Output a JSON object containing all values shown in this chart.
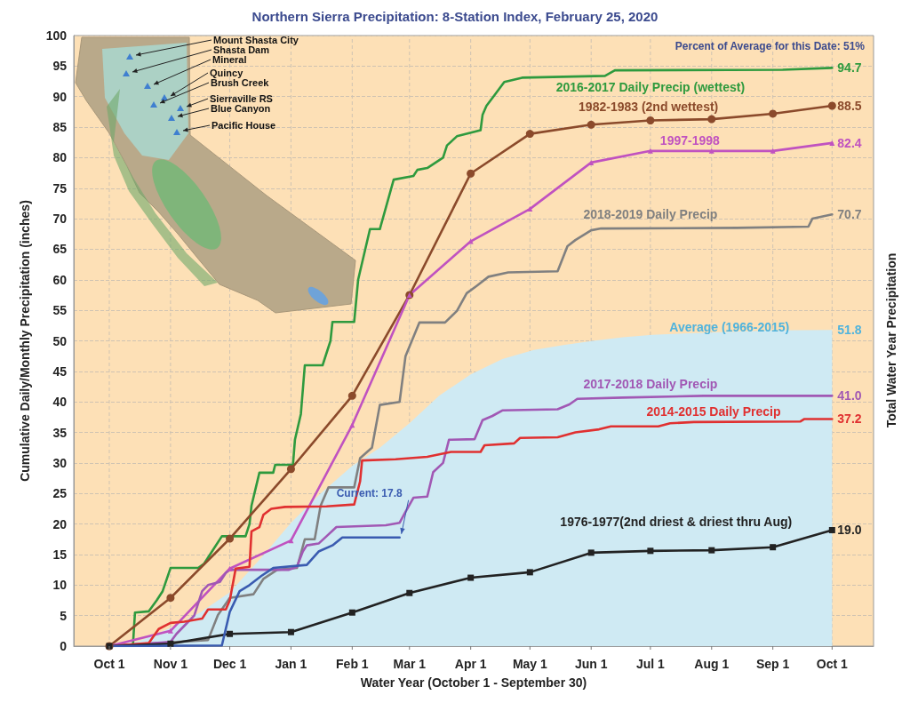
{
  "chart_data": {
    "type": "line",
    "title": "Northern Sierra Precipitation: 8-Station Index, February 25, 2020",
    "xlabel": "Water Year (October 1 - September 30)",
    "ylabel": "Cumulative Daily/Monthly Precipitation (inches)",
    "y2label": "Total Water Year Precipitation",
    "annotations": [
      "Percent of Average for this Date: 51%",
      "Mount Shasta City",
      "Shasta Dam",
      "Mineral",
      "Quincy",
      "Brush Creek",
      "Sierraville RS",
      "Blue Canyon",
      "Pacific House"
    ],
    "xlim": [
      "2019-09-13",
      "2020-10-22"
    ],
    "xticks": [
      {
        "value": "2019-10-01",
        "label": "Oct 1"
      },
      {
        "value": "2019-11-01",
        "label": "Nov 1"
      },
      {
        "value": "2019-12-01",
        "label": "Dec 1"
      },
      {
        "value": "2020-01-01",
        "label": "Jan 1"
      },
      {
        "value": "2020-02-01",
        "label": "Feb 1"
      },
      {
        "value": "2020-03-01",
        "label": "Mar 1"
      },
      {
        "value": "2020-04-01",
        "label": "Apr 1"
      },
      {
        "value": "2020-05-01",
        "label": "May 1"
      },
      {
        "value": "2020-06-01",
        "label": "Jun 1"
      },
      {
        "value": "2020-07-01",
        "label": "Jul 1"
      },
      {
        "value": "2020-08-01",
        "label": "Aug 1"
      },
      {
        "value": "2020-09-01",
        "label": "Sep 1"
      },
      {
        "value": "2020-10-01",
        "label": "Oct 1"
      }
    ],
    "ylim": [
      0,
      100
    ],
    "yticks": [
      0,
      5,
      10,
      15,
      20,
      25,
      30,
      35,
      40,
      45,
      50,
      55,
      60,
      65,
      70,
      75,
      80,
      85,
      90,
      95,
      100
    ],
    "grid": true,
    "marker": "none",
    "series": [
      {
        "name": "Average (1966-2015)",
        "type": "area",
        "color": "#cfeaf3",
        "x": [
          "2019-10-01",
          "2019-10-16",
          "2019-11-01",
          "2019-11-16",
          "2019-12-01",
          "2019-12-17",
          "2020-01-01",
          "2020-01-16",
          "2020-02-01",
          "2020-02-15",
          "2020-03-01",
          "2020-03-16",
          "2020-04-01",
          "2020-04-17",
          "2020-05-03",
          "2020-05-18",
          "2020-06-02",
          "2020-06-17",
          "2020-07-02",
          "2020-08-02",
          "2020-09-01",
          "2020-10-01"
        ],
        "values": [
          0,
          0.8,
          3,
          5.5,
          8.8,
          14.5,
          20.2,
          25,
          29.5,
          32.5,
          36.5,
          41,
          44.5,
          47,
          48.5,
          49.3,
          50,
          50.6,
          51,
          51.4,
          51.7,
          51.8
        ],
        "value_labels": [
          null,
          null,
          null,
          null,
          null,
          null,
          null,
          null,
          null,
          null,
          null,
          null,
          null,
          null,
          null,
          null,
          null,
          null,
          null,
          null,
          null,
          "51.8"
        ]
      },
      {
        "name": "2016-2017 Daily Precip (wettest)",
        "color": "#2e9a3e",
        "x": [
          "2019-10-01",
          "2019-10-13",
          "2019-10-14",
          "2019-10-21",
          "2019-10-25",
          "2019-10-28",
          "2019-11-01",
          "2019-11-15",
          "2019-11-18",
          "2019-11-22",
          "2019-11-27",
          "2019-12-09",
          "2019-12-11",
          "2019-12-12",
          "2019-12-16",
          "2019-12-23",
          "2019-12-24",
          "2020-01-02",
          "2020-01-03",
          "2020-01-06",
          "2020-01-08",
          "2020-01-17",
          "2020-01-21",
          "2020-01-22",
          "2020-02-02",
          "2020-02-04",
          "2020-02-10",
          "2020-02-15",
          "2020-02-22",
          "2020-03-03",
          "2020-03-05",
          "2020-03-10",
          "2020-03-18",
          "2020-03-20",
          "2020-03-25",
          "2020-04-06",
          "2020-04-07",
          "2020-04-09",
          "2020-04-13",
          "2020-04-18",
          "2020-04-27",
          "2020-06-08",
          "2020-06-13",
          "2020-09-06",
          "2020-10-01"
        ],
        "values": [
          0,
          0.3,
          5.5,
          5.7,
          7.5,
          9,
          12.8,
          12.8,
          13.5,
          15.5,
          18,
          18,
          20,
          23,
          28.4,
          28.4,
          29.7,
          29.7,
          33.8,
          38,
          46,
          46,
          50,
          53.1,
          53.1,
          60,
          68.3,
          68.3,
          76.4,
          77,
          78,
          78.3,
          80,
          82,
          83.5,
          84.5,
          87,
          88.5,
          90.2,
          92.4,
          93.1,
          93.4,
          94.3,
          94.4,
          94.7
        ],
        "value_labels": [
          null,
          null,
          null,
          null,
          null,
          null,
          null,
          null,
          null,
          null,
          null,
          null,
          null,
          null,
          null,
          null,
          null,
          null,
          null,
          null,
          null,
          null,
          null,
          null,
          null,
          null,
          null,
          null,
          null,
          null,
          null,
          null,
          null,
          null,
          null,
          null,
          null,
          null,
          null,
          null,
          null,
          null,
          null,
          null,
          "94.7"
        ]
      },
      {
        "name": "1982-1983 (2nd wettest)",
        "color": "#8b4a2b",
        "marker": "circle",
        "x": [
          "2019-10-01",
          "2019-11-01",
          "2019-12-01",
          "2020-01-01",
          "2020-02-01",
          "2020-03-01",
          "2020-04-01",
          "2020-05-01",
          "2020-06-01",
          "2020-07-01",
          "2020-08-01",
          "2020-09-01",
          "2020-10-01"
        ],
        "values": [
          0,
          7.9,
          17.6,
          29,
          41,
          57.5,
          77.4,
          83.9,
          85.4,
          86.1,
          86.3,
          87.2,
          88.5
        ],
        "value_labels": [
          null,
          null,
          null,
          null,
          null,
          null,
          null,
          null,
          null,
          null,
          null,
          null,
          "88.5"
        ]
      },
      {
        "name": "1997-1998",
        "color": "#c052c0",
        "marker": "triangle",
        "x": [
          "2019-10-01",
          "2019-11-01",
          "2019-12-01",
          "2020-01-01",
          "2020-02-01",
          "2020-03-01",
          "2020-04-01",
          "2020-05-01",
          "2020-06-01",
          "2020-07-01",
          "2020-08-01",
          "2020-09-01",
          "2020-10-01"
        ],
        "values": [
          0,
          2.5,
          12.7,
          17.3,
          36.2,
          57.5,
          66.3,
          71.6,
          79.2,
          81.1,
          81.1,
          81.1,
          82.4
        ],
        "value_labels": [
          null,
          null,
          null,
          null,
          null,
          null,
          null,
          null,
          null,
          null,
          null,
          null,
          "82.4"
        ]
      },
      {
        "name": "2018-2019 Daily Precip",
        "color": "#808080",
        "x": [
          "2019-10-01",
          "2019-11-20",
          "2019-11-25",
          "2019-12-01",
          "2019-12-13",
          "2019-12-18",
          "2019-12-25",
          "2020-01-04",
          "2020-01-08",
          "2020-01-13",
          "2020-01-16",
          "2020-01-20",
          "2020-02-02",
          "2020-02-05",
          "2020-02-11",
          "2020-02-15",
          "2020-02-25",
          "2020-02-28",
          "2020-03-06",
          "2020-03-19",
          "2020-03-25",
          "2020-03-30",
          "2020-04-04",
          "2020-04-10",
          "2020-04-20",
          "2020-05-15",
          "2020-05-20",
          "2020-05-24",
          "2020-06-01",
          "2020-06-06",
          "2020-08-14",
          "2020-09-19",
          "2020-09-21",
          "2020-10-01"
        ],
        "values": [
          0,
          1,
          5.1,
          7.9,
          8.5,
          11,
          12.5,
          12.8,
          17.5,
          17.5,
          23,
          26,
          26,
          30.8,
          32.5,
          39.5,
          40,
          47.5,
          53,
          53,
          54.9,
          57.8,
          59,
          60.5,
          61.2,
          61.4,
          65.5,
          66.5,
          68.1,
          68.4,
          68.5,
          68.7,
          70,
          70.7
        ],
        "value_labels": [
          null,
          null,
          null,
          null,
          null,
          null,
          null,
          null,
          null,
          null,
          null,
          null,
          null,
          null,
          null,
          null,
          null,
          null,
          null,
          null,
          null,
          null,
          null,
          null,
          null,
          null,
          null,
          null,
          null,
          null,
          null,
          null,
          null,
          "70.7"
        ]
      },
      {
        "name": "2017-2018 Daily Precip",
        "color": "#a158b4",
        "x": [
          "2019-10-01",
          "2019-11-01",
          "2019-11-04",
          "2019-11-10",
          "2019-11-13",
          "2019-11-17",
          "2019-11-20",
          "2019-11-26",
          "2019-11-29",
          "2019-12-01",
          "2019-12-31",
          "2020-01-04",
          "2020-01-07",
          "2020-01-09",
          "2020-01-15",
          "2020-01-19",
          "2020-01-24",
          "2020-02-18",
          "2020-02-25",
          "2020-02-28",
          "2020-03-03",
          "2020-03-10",
          "2020-03-13",
          "2020-03-18",
          "2020-03-21",
          "2020-04-03",
          "2020-04-07",
          "2020-04-12",
          "2020-04-17",
          "2020-05-15",
          "2020-05-21",
          "2020-05-25",
          "2020-06-17",
          "2020-07-28",
          "2020-10-01"
        ],
        "values": [
          0,
          0.7,
          2,
          4,
          5,
          9,
          10,
          10.5,
          12,
          12.5,
          12.5,
          13,
          15.5,
          16.5,
          16.8,
          18,
          19.5,
          19.8,
          20.2,
          22,
          24.3,
          24.5,
          28.5,
          30,
          33.8,
          33.9,
          37,
          37.7,
          38.6,
          38.8,
          39.6,
          40.5,
          40.7,
          41,
          41
        ],
        "value_labels": [
          null,
          null,
          null,
          null,
          null,
          null,
          null,
          null,
          null,
          null,
          null,
          null,
          null,
          null,
          null,
          null,
          null,
          null,
          null,
          null,
          null,
          null,
          null,
          null,
          null,
          null,
          null,
          null,
          null,
          null,
          null,
          null,
          null,
          null,
          "41.0"
        ]
      },
      {
        "name": "2014-2015 Daily Precip",
        "color": "#e03030",
        "x": [
          "2019-10-01",
          "2019-10-21",
          "2019-10-26",
          "2019-11-01",
          "2019-11-08",
          "2019-11-17",
          "2019-11-20",
          "2019-11-29",
          "2019-12-01",
          "2019-12-04",
          "2019-12-11",
          "2019-12-12",
          "2019-12-16",
          "2019-12-18",
          "2019-12-22",
          "2019-12-29",
          "2020-01-19",
          "2020-02-02",
          "2020-02-05",
          "2020-02-06",
          "2020-02-23",
          "2020-03-10",
          "2020-03-22",
          "2020-04-06",
          "2020-04-08",
          "2020-04-23",
          "2020-04-26",
          "2020-05-15",
          "2020-05-24",
          "2020-06-05",
          "2020-06-11",
          "2020-07-05",
          "2020-07-11",
          "2020-07-23",
          "2020-09-15",
          "2020-09-17",
          "2020-10-01"
        ],
        "values": [
          0,
          0.5,
          2.8,
          3.8,
          4,
          4.5,
          6,
          6,
          7.5,
          12.7,
          13,
          18.8,
          19.5,
          21.5,
          22.5,
          22.8,
          22.9,
          23.2,
          27,
          30.4,
          30.6,
          31,
          31.8,
          31.8,
          32.9,
          33.2,
          34.1,
          34.2,
          35,
          35.5,
          36,
          36,
          36.5,
          36.7,
          36.8,
          37.2,
          37.2
        ],
        "value_labels": [
          null,
          null,
          null,
          null,
          null,
          null,
          null,
          null,
          null,
          null,
          null,
          null,
          null,
          null,
          null,
          null,
          null,
          null,
          null,
          null,
          null,
          null,
          null,
          null,
          null,
          null,
          null,
          null,
          null,
          null,
          null,
          null,
          null,
          null,
          null,
          null,
          "37.2"
        ]
      },
      {
        "name": "1976-1977(2nd driest & driest thru Aug)",
        "color": "#222222",
        "marker": "square",
        "x": [
          "2019-10-01",
          "2019-11-01",
          "2019-12-01",
          "2020-01-01",
          "2020-02-01",
          "2020-03-01",
          "2020-04-01",
          "2020-05-01",
          "2020-06-01",
          "2020-07-01",
          "2020-08-01",
          "2020-09-01",
          "2020-10-01"
        ],
        "values": [
          0,
          0.4,
          2,
          2.3,
          5.5,
          8.7,
          11.2,
          12.1,
          15.3,
          15.6,
          15.7,
          16.2,
          19
        ],
        "value_labels": [
          null,
          null,
          null,
          null,
          null,
          null,
          null,
          null,
          null,
          null,
          null,
          null,
          "19.0"
        ]
      },
      {
        "color": "#3a5bb0",
        "x": [
          "2019-10-01",
          "2019-11-27",
          "2019-12-01",
          "2019-12-06",
          "2019-12-11",
          "2019-12-17",
          "2019-12-23",
          "2020-01-09",
          "2020-01-15",
          "2020-01-22",
          "2020-01-27",
          "2020-02-25"
        ],
        "values": [
          0,
          0.1,
          5.6,
          9,
          10,
          11.5,
          12.8,
          13.3,
          15.5,
          16.5,
          17.8,
          17.8
        ],
        "value_labels": [
          null,
          null,
          null,
          null,
          null,
          null,
          null,
          null,
          null,
          null,
          null,
          "Current: 17.8"
        ]
      }
    ]
  }
}
